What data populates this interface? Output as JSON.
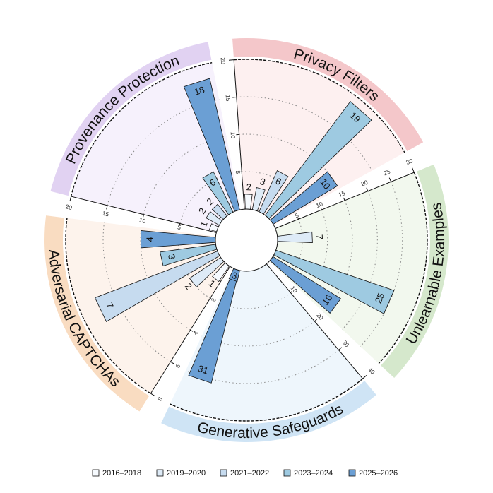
{
  "colors": {
    "series": [
      "#f6fafe",
      "#deebf7",
      "#c6dbef",
      "#9ecae1",
      "#6b9fd4"
    ],
    "bar_stroke": "#111111"
  },
  "chart_data": {
    "type": "bar",
    "layout": "circular",
    "series_names": [
      "2016–2018",
      "2019–2020",
      "2021–2022",
      "2023–2024",
      "2025–2026"
    ],
    "legend_position": "bottom",
    "sectors": [
      {
        "name": "Privacy Filters",
        "band_color": "#f4c7ca",
        "bg_color": "#fdf0f0",
        "ylim": [
          0,
          20
        ],
        "ticks": [
          5,
          10,
          15,
          20
        ],
        "values": [
          2,
          3,
          6,
          19,
          10
        ]
      },
      {
        "name": "Unlearnable Examples",
        "band_color": "#d5e8cc",
        "bg_color": "#f2f8ee",
        "ylim": [
          0,
          30
        ],
        "ticks": [
          5,
          10,
          15,
          20,
          25,
          30
        ],
        "values": [
          0,
          7,
          0,
          25,
          16
        ]
      },
      {
        "name": "Generative Safeguards",
        "band_color": "#cfe4f5",
        "bg_color": "#eef6fc",
        "ylim": [
          0,
          40
        ],
        "ticks": [
          10,
          20,
          30,
          40
        ],
        "values": [
          0,
          0,
          0,
          0,
          31
        ],
        "minor_values": [
          0,
          0,
          0,
          0,
          3
        ]
      },
      {
        "name": "Adversarial CAPTCHAs",
        "band_color": "#f9dcc1",
        "bg_color": "#fdf3ec",
        "ylim": [
          0,
          8
        ],
        "ticks": [
          2,
          4,
          6,
          8
        ],
        "values": [
          1,
          2,
          7,
          3,
          4
        ]
      },
      {
        "name": "Provenance Protection",
        "band_color": "#e1d2f2",
        "bg_color": "#f6f1fc",
        "ylim": [
          0,
          20
        ],
        "ticks": [
          5,
          10,
          15,
          20
        ],
        "values": [
          1,
          2,
          2,
          6,
          18
        ]
      }
    ],
    "legend": [
      "2016–2018",
      "2019–2020",
      "2021–2022",
      "2023–2024",
      "2025–2026"
    ]
  }
}
